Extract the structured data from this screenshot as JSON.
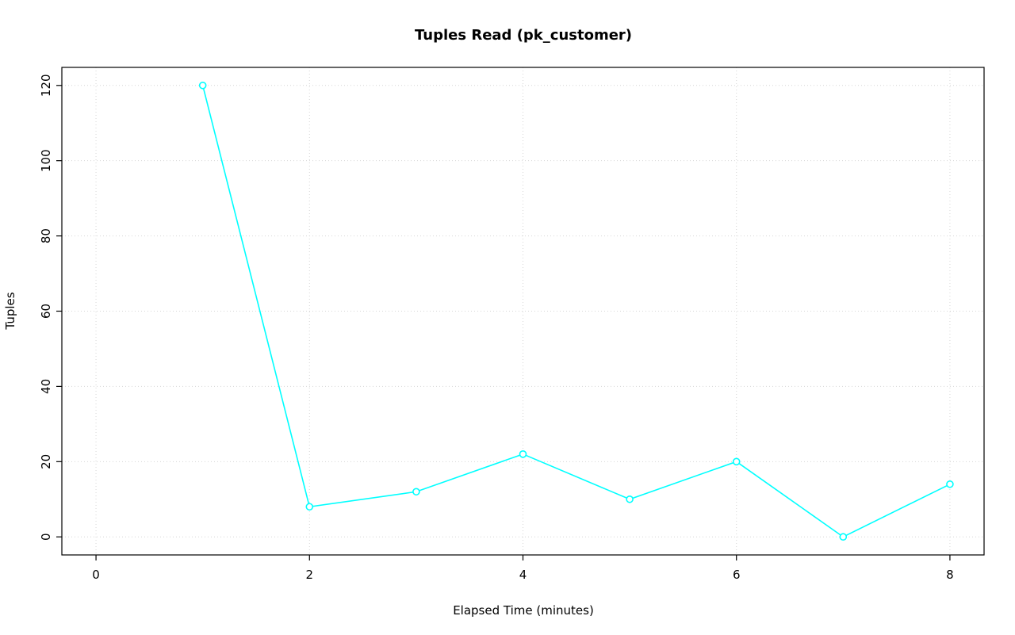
{
  "chart_data": {
    "type": "line",
    "title": "Tuples Read (pk_customer)",
    "xlabel": "Elapsed Time (minutes)",
    "ylabel": "Tuples",
    "x": [
      1,
      2,
      3,
      4,
      5,
      6,
      7,
      8
    ],
    "values": [
      120,
      8,
      12,
      22,
      10,
      20,
      0,
      14
    ],
    "xticks": [
      0,
      2,
      4,
      6,
      8
    ],
    "yticks": [
      0,
      20,
      40,
      60,
      80,
      100,
      120
    ],
    "xlim": [
      0,
      8
    ],
    "ylim": [
      0,
      120
    ],
    "grid": true,
    "legend_position": "none",
    "colors": {
      "line": "#00FFFF",
      "marker_stroke": "#00FFFF",
      "marker_fill": "#FFFFFF",
      "grid": "#D6D6D6",
      "axis": "#000000",
      "background": "#FFFFFF"
    }
  }
}
